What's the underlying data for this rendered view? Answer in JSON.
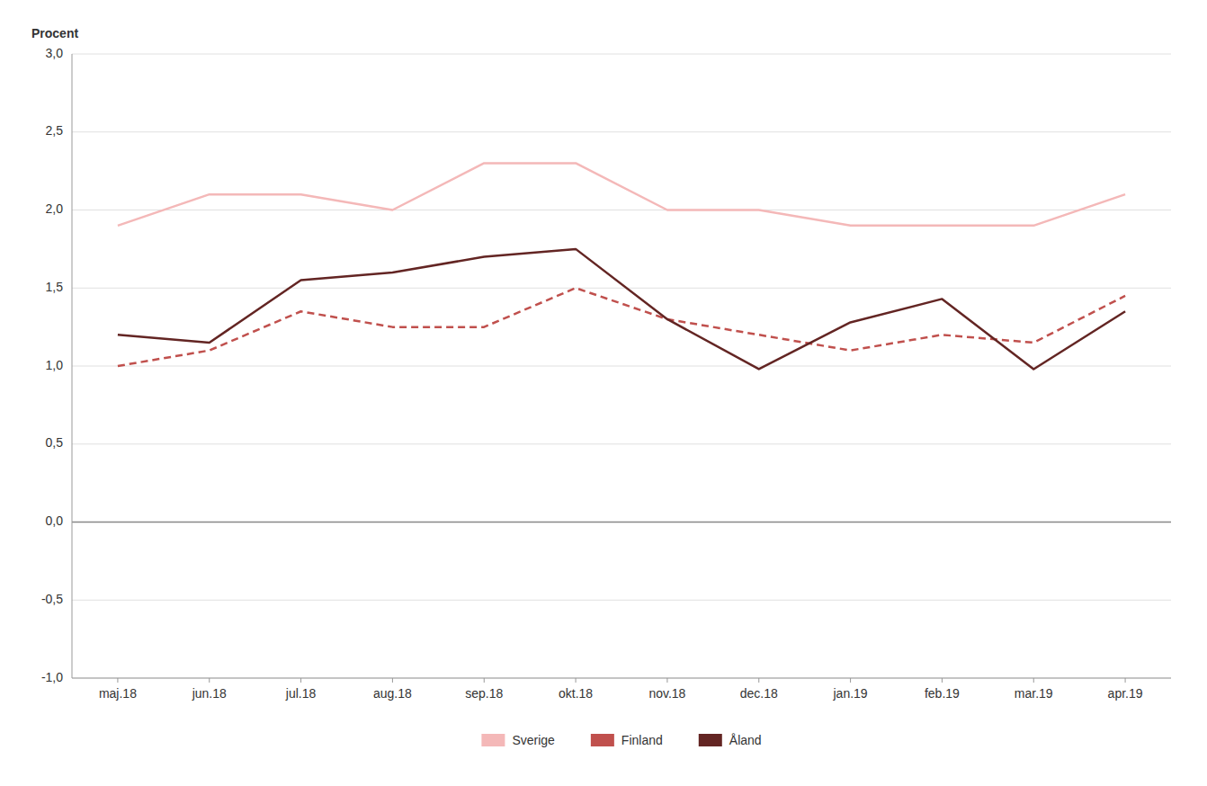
{
  "chart_data": {
    "type": "line",
    "y_label": "Procent",
    "categories": [
      "maj.18",
      "jun.18",
      "jul.18",
      "aug.18",
      "sep.18",
      "okt.18",
      "nov.18",
      "dec.18",
      "jan.19",
      "feb.19",
      "mar.19",
      "apr.19"
    ],
    "series": [
      {
        "name": "Sverige",
        "color": "#f4b8b8",
        "line_style": "solid",
        "values": [
          1.9,
          2.1,
          2.1,
          2.0,
          2.3,
          2.3,
          2.0,
          2.0,
          1.9,
          1.9,
          1.9,
          2.1
        ]
      },
      {
        "name": "Finland",
        "color": "#c0504d",
        "line_style": "dashed",
        "values": [
          1.0,
          1.1,
          1.35,
          1.25,
          1.25,
          1.5,
          1.3,
          1.2,
          1.1,
          1.2,
          1.15,
          1.45
        ]
      },
      {
        "name": "Åland",
        "color": "#632523",
        "line_style": "solid",
        "values": [
          1.2,
          1.15,
          1.55,
          1.6,
          1.7,
          1.75,
          1.3,
          0.98,
          1.28,
          1.43,
          0.98,
          1.35
        ]
      }
    ],
    "ylim": [
      -1.0,
      3.0
    ],
    "yticks": [
      {
        "value": -1.0,
        "label": "-1,0"
      },
      {
        "value": -0.5,
        "label": "-0,5"
      },
      {
        "value": 0.0,
        "label": "0,0"
      },
      {
        "value": 0.5,
        "label": "0,5"
      },
      {
        "value": 1.0,
        "label": "1,0"
      },
      {
        "value": 1.5,
        "label": "1,5"
      },
      {
        "value": 2.0,
        "label": "2,0"
      },
      {
        "value": 2.5,
        "label": "2,5"
      },
      {
        "value": 3.0,
        "label": "3,0"
      }
    ],
    "grid": true,
    "legend": "bottom"
  }
}
